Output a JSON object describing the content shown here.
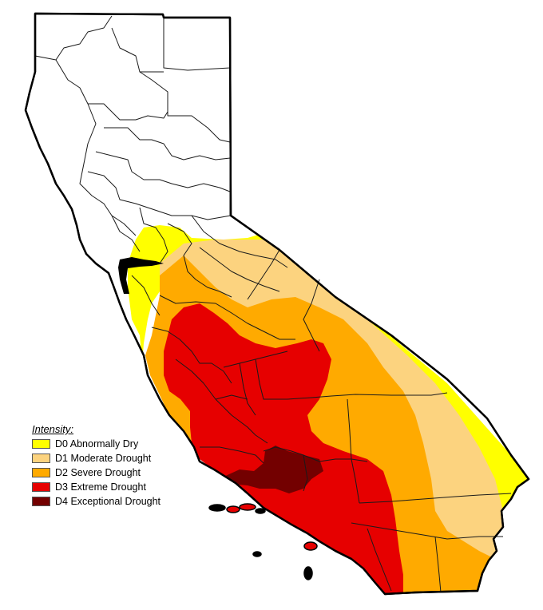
{
  "legend": {
    "title": "Intensity:",
    "items": [
      {
        "label": "D0 Abnormally Dry",
        "color": "#ffff00",
        "key": "D0"
      },
      {
        "label": "D1 Moderate Drought",
        "color": "#fcd37f",
        "key": "D1"
      },
      {
        "label": "D2 Severe Drought",
        "color": "#ffaa00",
        "key": "D2"
      },
      {
        "label": "D3 Extreme Drought",
        "color": "#e60000",
        "key": "D3"
      },
      {
        "label": "D4 Exceptional Drought",
        "color": "#730000",
        "key": "D4"
      }
    ]
  },
  "map": {
    "region": "California",
    "background": "#ffffff",
    "outline_color": "#000000"
  }
}
